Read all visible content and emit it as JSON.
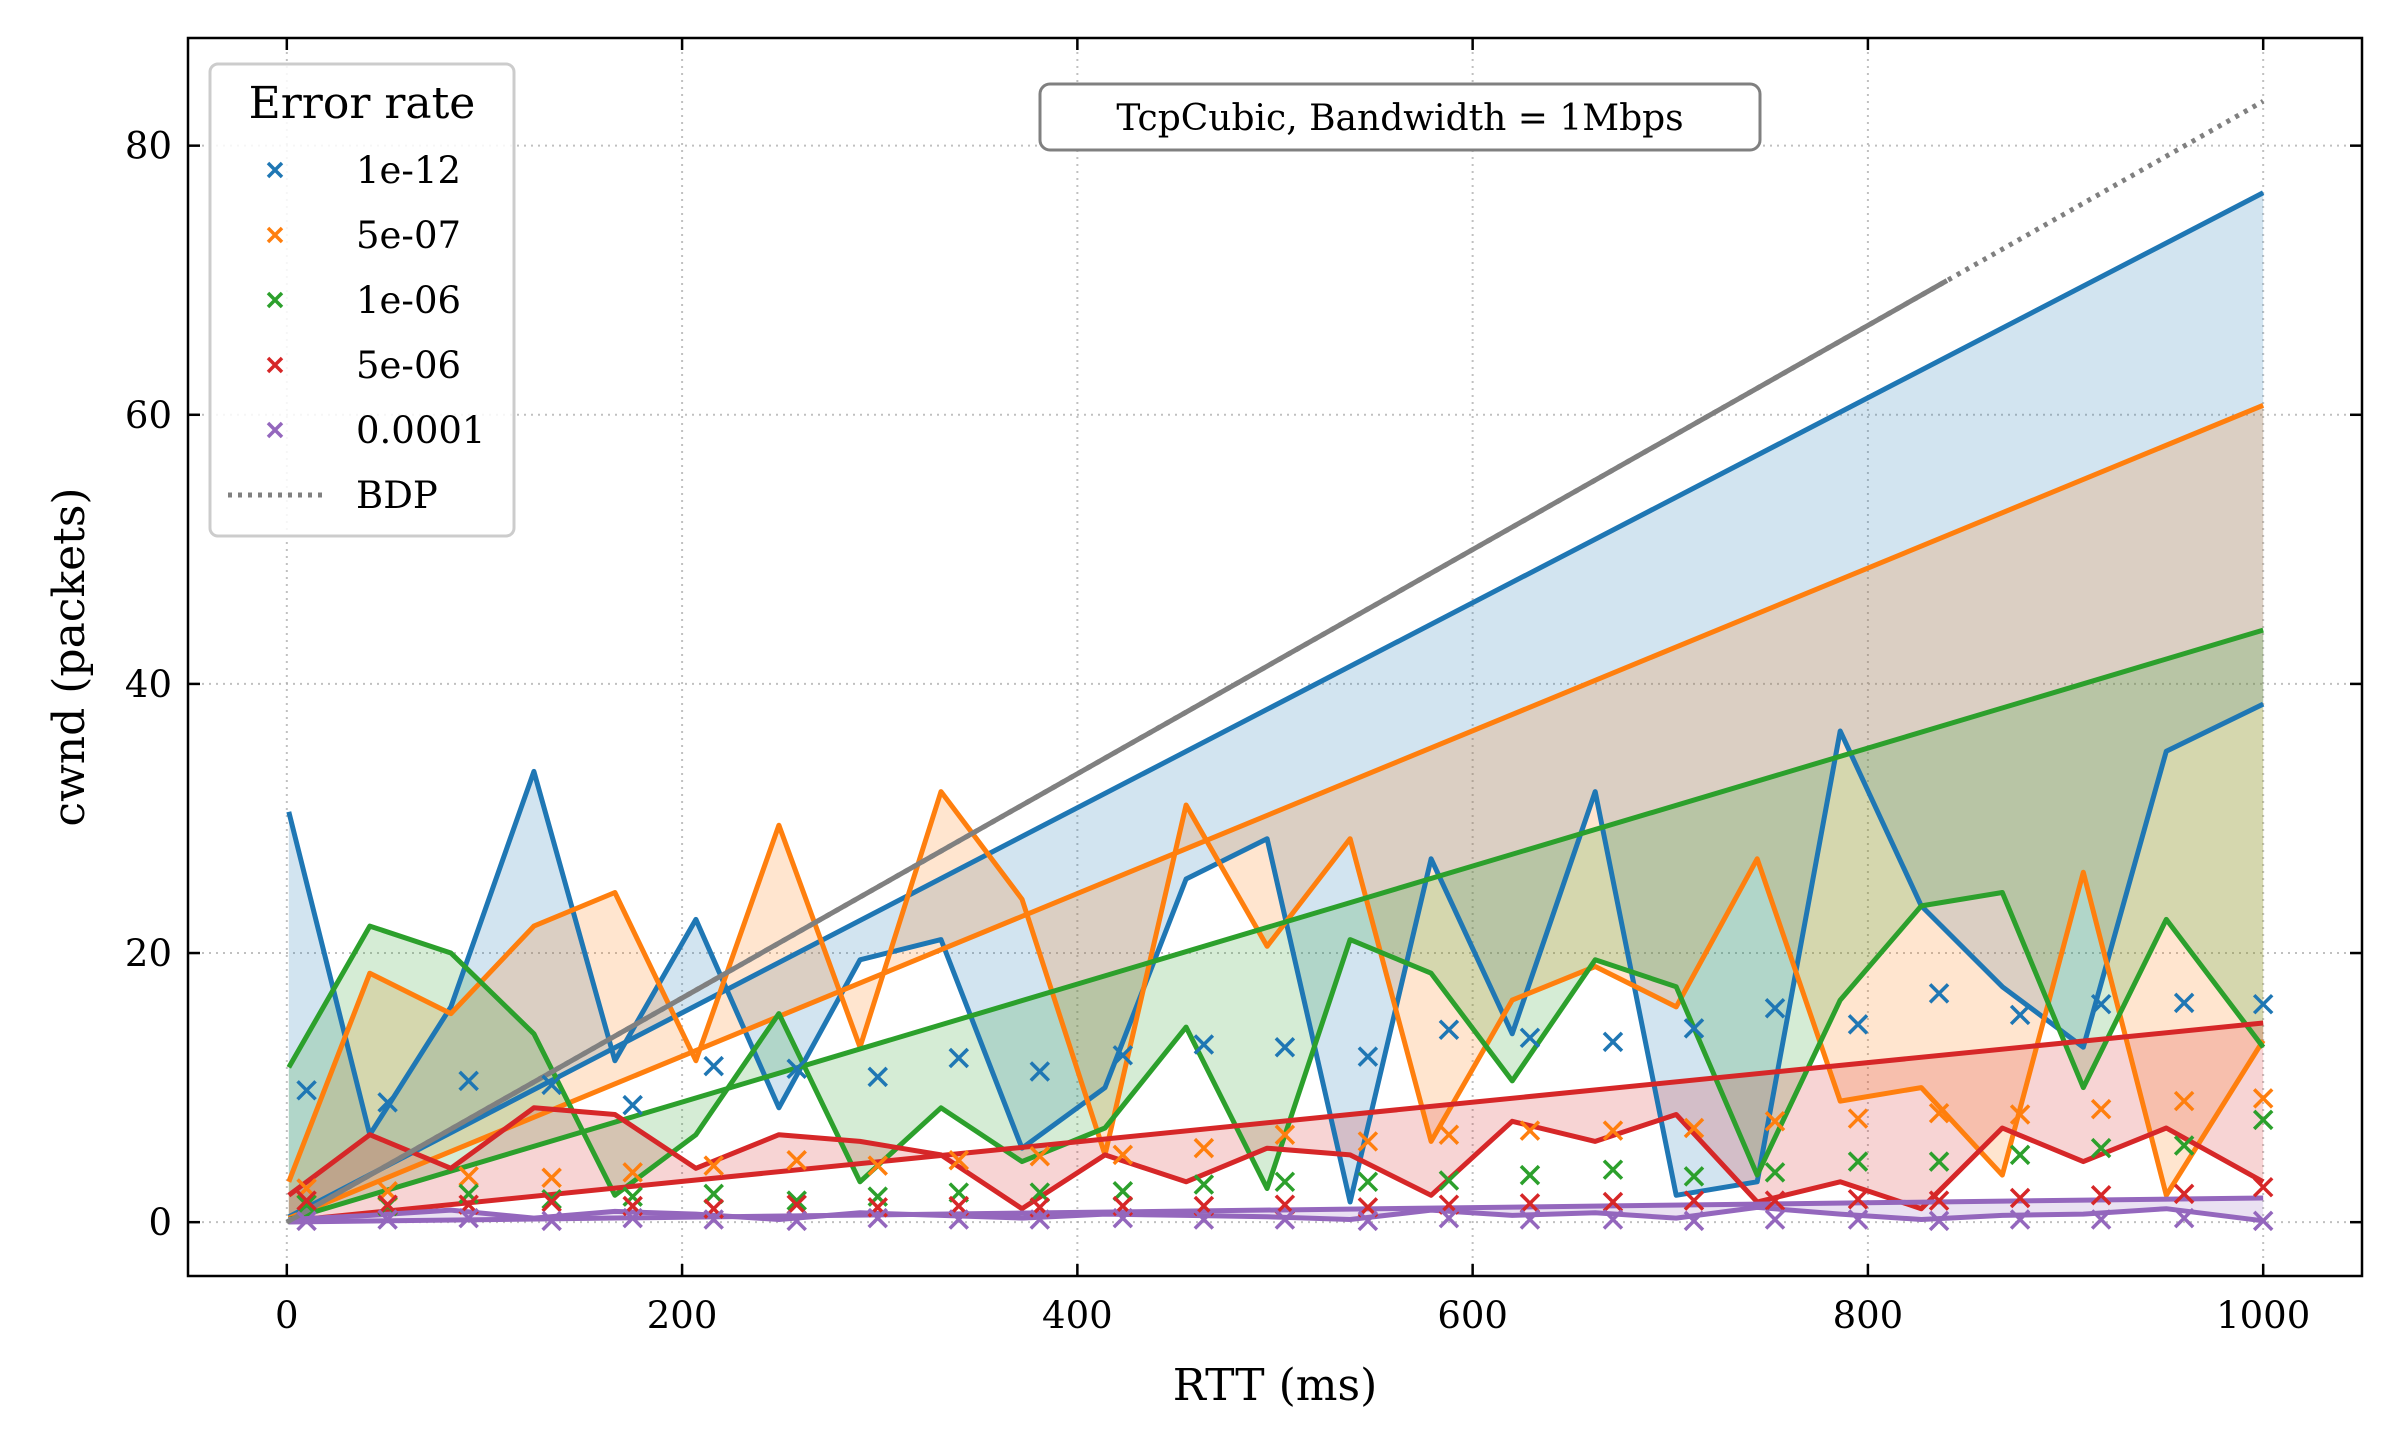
{
  "chart_data": {
    "type": "line",
    "annotation": "TcpCubic, Bandwidth = 1Mbps",
    "xlabel": "RTT (ms)",
    "ylabel": "cwnd (packets)",
    "xlim": [
      -50,
      1050
    ],
    "ylim": [
      -4,
      88
    ],
    "xticks": [
      0,
      200,
      400,
      600,
      800,
      1000
    ],
    "yticks": [
      0,
      20,
      40,
      60,
      80
    ],
    "grid": true,
    "legend": {
      "title": "Error rate",
      "placement": "top-left",
      "entries": [
        "1e-12",
        "5e-07",
        "1e-06",
        "5e-06",
        "0.0001",
        "BDP"
      ]
    },
    "x_line": [
      1,
      42,
      83,
      125,
      166,
      207,
      249,
      290,
      331,
      372,
      414,
      455,
      496,
      538,
      579,
      620,
      662,
      703,
      744,
      786,
      827,
      868,
      909,
      951,
      1000
    ],
    "x_markers": [
      10,
      51,
      92,
      134,
      175,
      216,
      258,
      299,
      340,
      381,
      423,
      464,
      505,
      547,
      588,
      629,
      671,
      712,
      753,
      795,
      836,
      877,
      918,
      960,
      1000
    ],
    "series": [
      {
        "name": "1e-12",
        "color": "#1f77b4",
        "trend": [
          0.4,
          76.5
        ],
        "line": [
          30.5,
          6.5,
          16,
          33.5,
          12,
          22.5,
          8.5,
          19.5,
          21,
          5.5,
          10,
          25.5,
          28.5,
          1.5,
          27,
          14,
          32,
          2,
          3,
          36.5,
          23.5,
          17.5,
          13,
          35,
          38.5
        ],
        "markers": [
          9.8,
          8.9,
          10.5,
          10.2,
          8.7,
          11.6,
          11.4,
          10.8,
          12.2,
          11.2,
          12.4,
          13.2,
          13,
          12.3,
          14.3,
          13.7,
          13.4,
          14.4,
          15.9,
          14.7,
          17,
          15.4,
          16.2,
          16.3,
          16.2
        ]
      },
      {
        "name": "5e-07",
        "color": "#ff7f0e",
        "trend": [
          0.3,
          60.7
        ],
        "line": [
          3,
          18.5,
          15.5,
          22,
          24.5,
          12,
          29.5,
          13,
          32,
          24,
          5,
          31,
          20.5,
          28.5,
          6,
          16.5,
          19,
          16,
          27,
          9,
          10,
          3.5,
          26,
          2,
          13.5
        ],
        "markers": [
          2.5,
          2.3,
          3.4,
          3.3,
          3.7,
          4.2,
          4.6,
          4.2,
          4.6,
          4.9,
          5,
          5.5,
          6.5,
          6,
          6.5,
          6.8,
          6.8,
          7,
          7.5,
          7.7,
          8.1,
          8,
          8.4,
          9,
          9.2
        ]
      },
      {
        "name": "1e-06",
        "color": "#2ca02c",
        "trend": [
          0.2,
          44
        ],
        "line": [
          11.5,
          22,
          20,
          14,
          2,
          6.5,
          15.5,
          3,
          8.5,
          4.5,
          7,
          14.5,
          2.5,
          21,
          18.5,
          10.5,
          19.5,
          17.5,
          3.5,
          16.5,
          23.5,
          24.5,
          10,
          22.5,
          13
        ],
        "markers": [
          1.3,
          1.2,
          2.1,
          1.7,
          1.9,
          2.1,
          1.6,
          1.9,
          2.2,
          2.2,
          2.3,
          2.8,
          3,
          3,
          3.1,
          3.5,
          3.9,
          3.4,
          3.7,
          4.5,
          4.5,
          5,
          5.5,
          5.7,
          7.6
        ]
      },
      {
        "name": "5e-06",
        "color": "#d62728",
        "trend": [
          0.1,
          14.8
        ],
        "line": [
          2,
          6.5,
          4,
          8.5,
          8,
          4,
          6.5,
          6,
          5,
          1,
          5,
          3,
          5.5,
          5,
          2,
          7.5,
          6,
          8,
          1.5,
          3,
          1,
          7,
          4.5,
          7,
          3
        ],
        "markers": [
          1.6,
          1.3,
          1.3,
          1.5,
          1.2,
          1,
          1.3,
          1.1,
          1.2,
          1.1,
          1.2,
          1.2,
          1.3,
          1.1,
          1.3,
          1.4,
          1.5,
          1.6,
          1.6,
          1.7,
          1.6,
          1.8,
          2,
          2.1,
          2.6
        ]
      },
      {
        "name": "0.0001",
        "color": "#9467bd",
        "trend": [
          0.01,
          1.8
        ],
        "line": [
          0.2,
          0.5,
          0.9,
          0.3,
          0.8,
          0.6,
          0.2,
          0.7,
          0.5,
          0.3,
          0.6,
          0.5,
          0.4,
          0.2,
          0.9,
          0.5,
          0.7,
          0.3,
          1.1,
          0.6,
          0.2,
          0.5,
          0.6,
          1,
          0.1
        ],
        "markers": [
          0.1,
          0.2,
          0.3,
          0.1,
          0.3,
          0.2,
          0.1,
          0.3,
          0.2,
          0.2,
          0.3,
          0.2,
          0.2,
          0.1,
          0.3,
          0.2,
          0.2,
          0.1,
          0.2,
          0.2,
          0.1,
          0.2,
          0.2,
          0.3,
          0.1
        ]
      }
    ],
    "bdp": {
      "name": "BDP",
      "color": "#808080",
      "x": [
        0,
        1000
      ],
      "y": [
        0,
        83.3
      ]
    }
  }
}
